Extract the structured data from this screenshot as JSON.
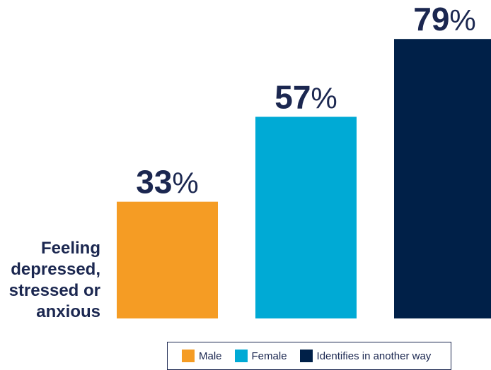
{
  "chart_data": {
    "type": "bar",
    "categories": [
      "Feeling depressed, stressed or anxious"
    ],
    "category_label_lines": [
      "Feeling",
      "depressed,",
      "stressed or",
      "anxious"
    ],
    "value_suffix": "%",
    "ylim": [
      0,
      100
    ],
    "series": [
      {
        "name": "Male",
        "values": [
          33
        ],
        "color": "#f59c24"
      },
      {
        "name": "Female",
        "values": [
          57
        ],
        "color": "#00aad5"
      },
      {
        "name": "Identifies in another way",
        "values": [
          79
        ],
        "color": "#002048"
      }
    ],
    "legend_position": "bottom",
    "grid": false
  }
}
